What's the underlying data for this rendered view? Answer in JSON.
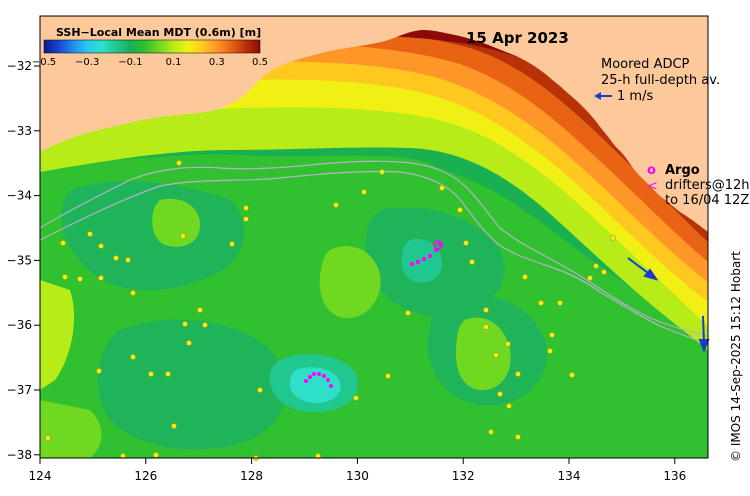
{
  "date": "15 Apr 2023",
  "colorbar": {
    "title": "SSH−Local Mean MDT (0.6m) [m]",
    "ticks": [
      "−0.5",
      "−0.3",
      "−0.1",
      "0.1",
      "0.3",
      "0.5"
    ],
    "colors": [
      "#0a1a8c",
      "#1446d2",
      "#1e8cf0",
      "#28c8f0",
      "#2ee0c8",
      "#20c890",
      "#18b058",
      "#30c030",
      "#70d820",
      "#b8ec18",
      "#f0f014",
      "#ffc81e",
      "#ff9628",
      "#e86414",
      "#b83208",
      "#8c0a0a"
    ]
  },
  "legend": {
    "adcp_title": "Moored ADCP",
    "adcp_subtitle": "25-h full-depth av.",
    "adcp_scale": "1 m/s",
    "argo_symbol": "o",
    "argo_label": "Argo",
    "drifter_symbol": "<",
    "drifter_label": "drifters@12h",
    "drifter_date": "to 16/04 12Z"
  },
  "axes": {
    "x_ticks": [
      "124",
      "126",
      "128",
      "130",
      "132",
      "134",
      "136"
    ],
    "y_ticks": [
      "−32",
      "−33",
      "−34",
      "−35",
      "−36",
      "−37",
      "−38"
    ]
  },
  "credit": "© IMOS 14-Sep-2025 15:12 Hobart",
  "colors": {
    "land": "#fdc89a",
    "magenta": "#ff00ff",
    "arrow": "#1a3ccc"
  }
}
